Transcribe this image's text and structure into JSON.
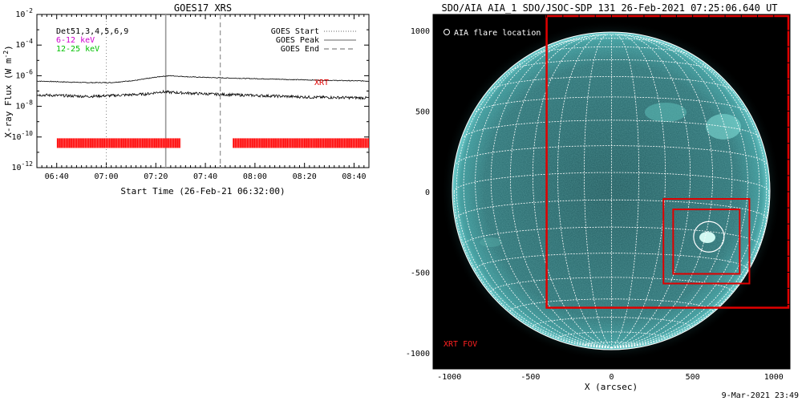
{
  "chart_data": [
    {
      "type": "line",
      "title": "GOES17 XRS",
      "xlabel": "Start Time (26-Feb-21 06:32:00)",
      "ylabel": "X-ray Flux (W m^-2)",
      "x_tick_labels": [
        "06:40",
        "07:00",
        "07:20",
        "07:40",
        "08:00",
        "08:20",
        "08:40"
      ],
      "x_tick_minutes": [
        8,
        28,
        48,
        68,
        88,
        108,
        128
      ],
      "xlim_minutes": [
        0,
        134
      ],
      "y_scale": "log",
      "ylim_exponent": [
        -12,
        -2
      ],
      "y_tick_exponents": [
        -2,
        -4,
        -6,
        -8,
        -10,
        -12
      ],
      "corner_labels": {
        "label1": "Det51,3,4,5,6,9",
        "label2": "6-12 keV",
        "label3": "12-25 keV",
        "colors": {
          "label1": "#000000",
          "label2": "#d000d0",
          "label3": "#00c000"
        }
      },
      "legend": {
        "position": "top-right",
        "entries": [
          {
            "label": "GOES Start",
            "style": "dotted"
          },
          {
            "label": "GOES Peak",
            "style": "solid"
          },
          {
            "label": "GOES End",
            "style": "dashed"
          }
        ]
      },
      "event_lines_minutes": {
        "start": 28,
        "peak": 52,
        "end": 74
      },
      "xrt_label": "XRT",
      "series": [
        {
          "key": "long",
          "color": "#000000",
          "points": [
            [
              0,
              -6.35
            ],
            [
              10,
              -6.4
            ],
            [
              20,
              -6.45
            ],
            [
              30,
              -6.45
            ],
            [
              40,
              -6.3
            ],
            [
              46,
              -6.15
            ],
            [
              50,
              -6.05
            ],
            [
              54,
              -6.0
            ],
            [
              62,
              -6.08
            ],
            [
              72,
              -6.13
            ],
            [
              90,
              -6.2
            ],
            [
              110,
              -6.28
            ],
            [
              134,
              -6.35
            ]
          ]
        },
        {
          "key": "short",
          "color": "#000000",
          "points": [
            [
              0,
              -7.25
            ],
            [
              20,
              -7.35
            ],
            [
              30,
              -7.3
            ],
            [
              44,
              -7.2
            ],
            [
              50,
              -7.05
            ],
            [
              56,
              -7.1
            ],
            [
              70,
              -7.2
            ],
            [
              90,
              -7.3
            ],
            [
              110,
              -7.4
            ],
            [
              134,
              -7.45
            ]
          ]
        }
      ],
      "xrt_coverage": {
        "color": "#ff0000",
        "y_exponent": -10.4,
        "segments_minutes": [
          [
            8,
            58
          ],
          [
            79,
            134
          ]
        ]
      }
    },
    {
      "type": "scatter",
      "title": "SDO/AIA AIA_1 SDO/JSOC-SDP 131 26-Feb-2021 07:25:06.640 UT",
      "xlabel": "X (arcsec)",
      "ylabel": "",
      "xlim": [
        -1100,
        1100
      ],
      "ylim": [
        -1100,
        1100
      ],
      "x_tick_values": [
        -1000,
        -500,
        0,
        500,
        1000
      ],
      "x_tick_labels": [
        "-1000",
        "-500",
        "0",
        "500",
        "1000"
      ],
      "y_tick_values": [
        1000,
        500,
        0,
        -500,
        -1000
      ],
      "y_tick_labels": [
        "1000",
        "500",
        "0",
        "-500",
        "-1000"
      ],
      "solar_radius_arcsec": 970,
      "grid_spacing_deg": 10,
      "legend_text": "AIA flare location",
      "flare_location": [
        600,
        -280
      ],
      "xrt_fov_label": "XRT FOV",
      "xrt_fov_box": {
        "xmin": -400,
        "xmax": 1090,
        "ymin": -720,
        "ymax": 1090
      },
      "xrt_inner_boxes": [
        {
          "xmin": 320,
          "xmax": 850,
          "ymin": -570,
          "ymax": -45
        },
        {
          "xmin": 380,
          "xmax": 790,
          "ymin": -510,
          "ymax": -110
        }
      ],
      "colors": {
        "disk": "#2a6e72",
        "limb": "#3fbfbf",
        "grid": "#ffffff",
        "fov": "#e00000",
        "background": "#000000"
      }
    }
  ],
  "footer_date": "9-Mar-2021 23:49"
}
